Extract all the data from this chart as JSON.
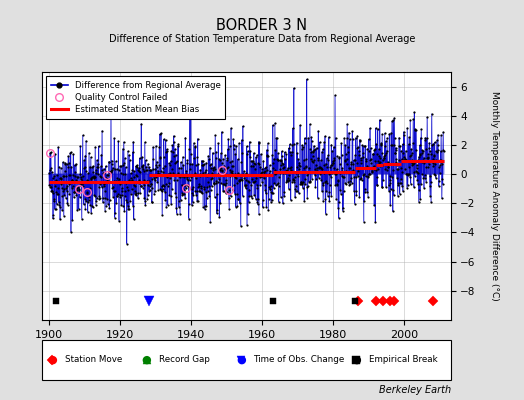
{
  "title": "BORDER 3 N",
  "subtitle": "Difference of Station Temperature Data from Regional Average",
  "ylabel": "Monthly Temperature Anomaly Difference (°C)",
  "xlim": [
    1898,
    2013
  ],
  "ylim": [
    -10,
    7
  ],
  "yticks": [
    -8,
    -6,
    -4,
    -2,
    0,
    2,
    4,
    6
  ],
  "xticks": [
    1900,
    1920,
    1940,
    1960,
    1980,
    2000
  ],
  "seed": 42,
  "start_year": 1900,
  "end_year": 2011,
  "bias_segments": [
    {
      "start": 1900,
      "end": 1928,
      "bias": -0.55
    },
    {
      "start": 1928,
      "end": 1963,
      "bias": -0.05
    },
    {
      "start": 1963,
      "end": 1986,
      "bias": 0.15
    },
    {
      "start": 1986,
      "end": 1992,
      "bias": 0.45
    },
    {
      "start": 1992,
      "end": 1994,
      "bias": 0.6
    },
    {
      "start": 1994,
      "end": 1999,
      "bias": 0.7
    },
    {
      "start": 1999,
      "end": 2011,
      "bias": 0.9
    }
  ],
  "station_moves": [
    1987,
    1992,
    1994,
    1996,
    1997,
    2008
  ],
  "obs_changes": [
    1928
  ],
  "empirical_breaks": [
    1902,
    1963,
    1986
  ],
  "qc_failed_approx": [
    1900.25,
    1908.5,
    1910.75,
    1916.3,
    1938.5,
    1948.8,
    1950.5
  ],
  "background_color": "#e0e0e0",
  "plot_bg_color": "#ffffff",
  "line_color": "#0000cc",
  "marker_color": "#000000",
  "bias_color": "#ff0000",
  "qc_color": "#ff69b4",
  "grid_color": "#b0b0b0",
  "noise_std": 1.3,
  "large_noise_count": 25,
  "large_noise_scale": 2.8,
  "event_y": -8.7
}
